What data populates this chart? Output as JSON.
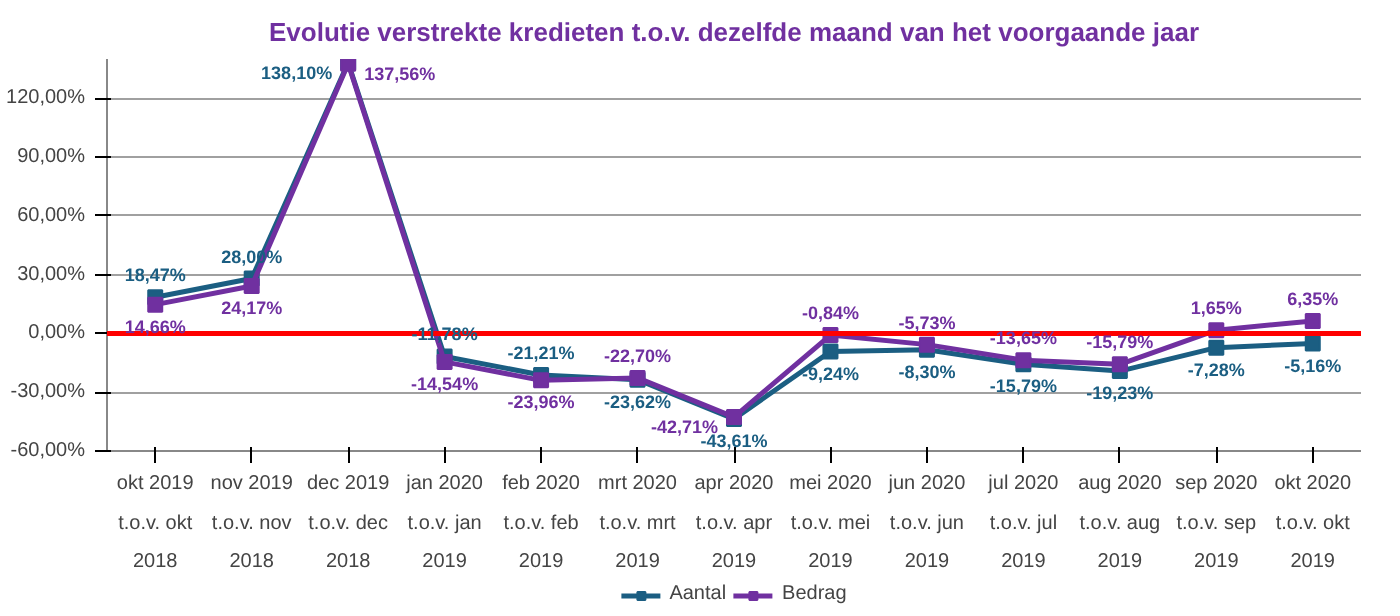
{
  "chart_data": {
    "type": "line",
    "title": "Evolutie verstrekte kredieten t.o.v. dezelfde maand van het voorgaande jaar",
    "categories": [
      "okt 2019\nt.o.v. okt\n2018",
      "nov 2019\nt.o.v. nov\n2018",
      "dec 2019\nt.o.v. dec\n2018",
      "jan 2020\nt.o.v. jan\n2019",
      "feb 2020\nt.o.v. feb\n2019",
      "mrt 2020\nt.o.v. mrt\n2019",
      "apr 2020\nt.o.v. apr\n2019",
      "mei 2020\nt.o.v. mei\n2019",
      "jun 2020\nt.o.v. jun\n2019",
      "jul 2020\nt.o.v. jul\n2019",
      "aug 2020\nt.o.v. aug\n2019",
      "sep 2020\nt.o.v. sep\n2019",
      "okt 2020\nt.o.v. okt\n2019"
    ],
    "series": [
      {
        "name": "Aantal",
        "color": "#1b5e82",
        "values": [
          18.47,
          28.0,
          138.1,
          -11.78,
          -21.21,
          -23.62,
          -43.61,
          -9.24,
          -8.3,
          -15.79,
          -19.23,
          -7.28,
          -5.16
        ],
        "value_labels": [
          "18,47%",
          "28,00%",
          "138,10%",
          "-11,78%",
          "-21,21%",
          "-23,62%",
          "-43,61%",
          "-9,24%",
          "-8,30%",
          "-15,79%",
          "-19,23%",
          "-7,28%",
          "-5,16%"
        ]
      },
      {
        "name": "Bedrag",
        "color": "#7030a0",
        "values": [
          14.66,
          24.17,
          137.56,
          -14.54,
          -23.96,
          -22.7,
          -42.71,
          -0.84,
          -5.73,
          -13.65,
          -15.79,
          1.65,
          6.35
        ],
        "value_labels": [
          "14,66%",
          "24,17%",
          "137,56%",
          "-14,54%",
          "-23,96%",
          "-22,70%",
          "-42,71%",
          "-0,84%",
          "-5,73%",
          "-13,65%",
          "-15,79%",
          "1,65%",
          "6,35%"
        ]
      }
    ],
    "ylim": [
      -60,
      140
    ],
    "yticks": [
      {
        "value": -60,
        "label": "-60,00%"
      },
      {
        "value": -30,
        "label": "-30,00%"
      },
      {
        "value": 0,
        "label": "0,00%"
      },
      {
        "value": 30,
        "label": "30,00%"
      },
      {
        "value": 60,
        "label": "60,00%"
      },
      {
        "value": 90,
        "label": "90,00%"
      },
      {
        "value": 120,
        "label": "120,00%"
      }
    ],
    "ref_lines": [
      {
        "axis": "y",
        "value": 0,
        "label": null,
        "color": "#ff0000"
      }
    ],
    "grid": "y",
    "legend": "bottom",
    "marker": "square",
    "line_style": "solid"
  }
}
